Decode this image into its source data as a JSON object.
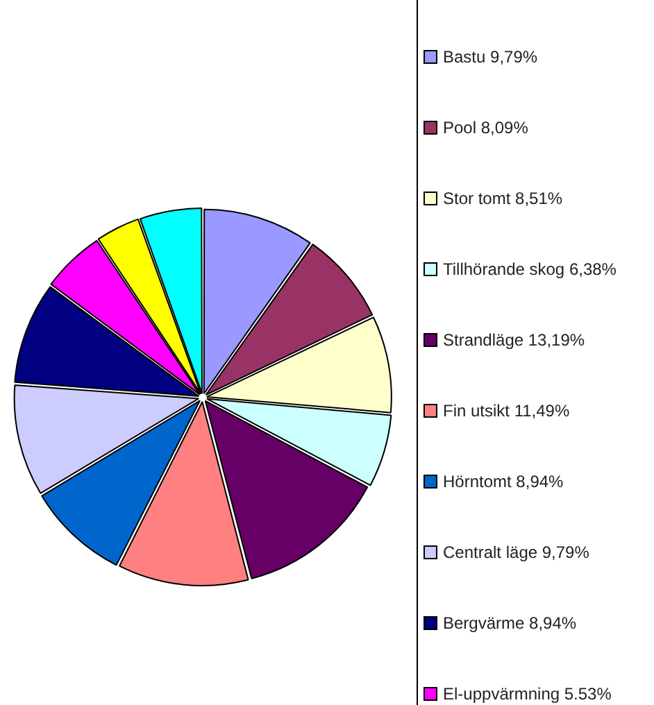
{
  "chart_data": {
    "type": "pie",
    "categories": [
      "Bastu",
      "Pool",
      "Stor tomt",
      "Tillhörande skog",
      "Strandläge",
      "Fin utsikt",
      "Hörntomt",
      "Centralt läge",
      "Bergvärme",
      "El-uppvärmning",
      null,
      null
    ],
    "values": [
      9.79,
      8.09,
      8.51,
      6.38,
      13.19,
      11.49,
      8.94,
      9.79,
      8.94,
      5.53,
      3.9,
      5.45
    ],
    "value_labels": [
      "9,79%",
      "8,09%",
      "8,51%",
      "6,38%",
      "13,19%",
      "11,49%",
      "8,94%",
      "9,79%",
      "8,94%",
      "5.53%",
      null,
      null
    ],
    "colors": [
      "#9999ff",
      "#993366",
      "#ffffcc",
      "#ccffff",
      "#660066",
      "#ff8080",
      "#0066cc",
      "#ccccff",
      "#000080",
      "#ff00ff",
      "#ffff00",
      "#00ffff"
    ],
    "legend": "right"
  }
}
